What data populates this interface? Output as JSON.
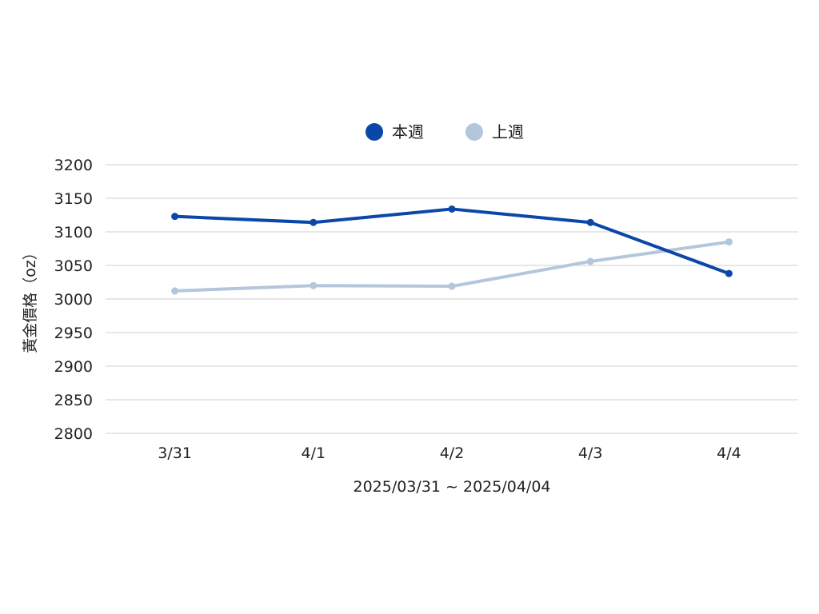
{
  "chart_data": {
    "type": "line",
    "categories": [
      "3/31",
      "4/1",
      "4/2",
      "4/3",
      "4/4"
    ],
    "series": [
      {
        "name": "本週",
        "color": "#0a47a9",
        "values": [
          3123,
          3114,
          3134,
          3114,
          3038
        ]
      },
      {
        "name": "上週",
        "color": "#b4c6dc",
        "values": [
          3012,
          3020,
          3019,
          3056,
          3085
        ]
      }
    ],
    "yticks": [
      2800,
      2850,
      2900,
      2950,
      3000,
      3050,
      3100,
      3150,
      3200
    ],
    "ylim": [
      2800,
      3200
    ],
    "xlabel": "2025/03/31 ~ 2025/04/04",
    "ylabel": "黃金價格（oz）",
    "grid": true,
    "legend_position": "top-center"
  }
}
